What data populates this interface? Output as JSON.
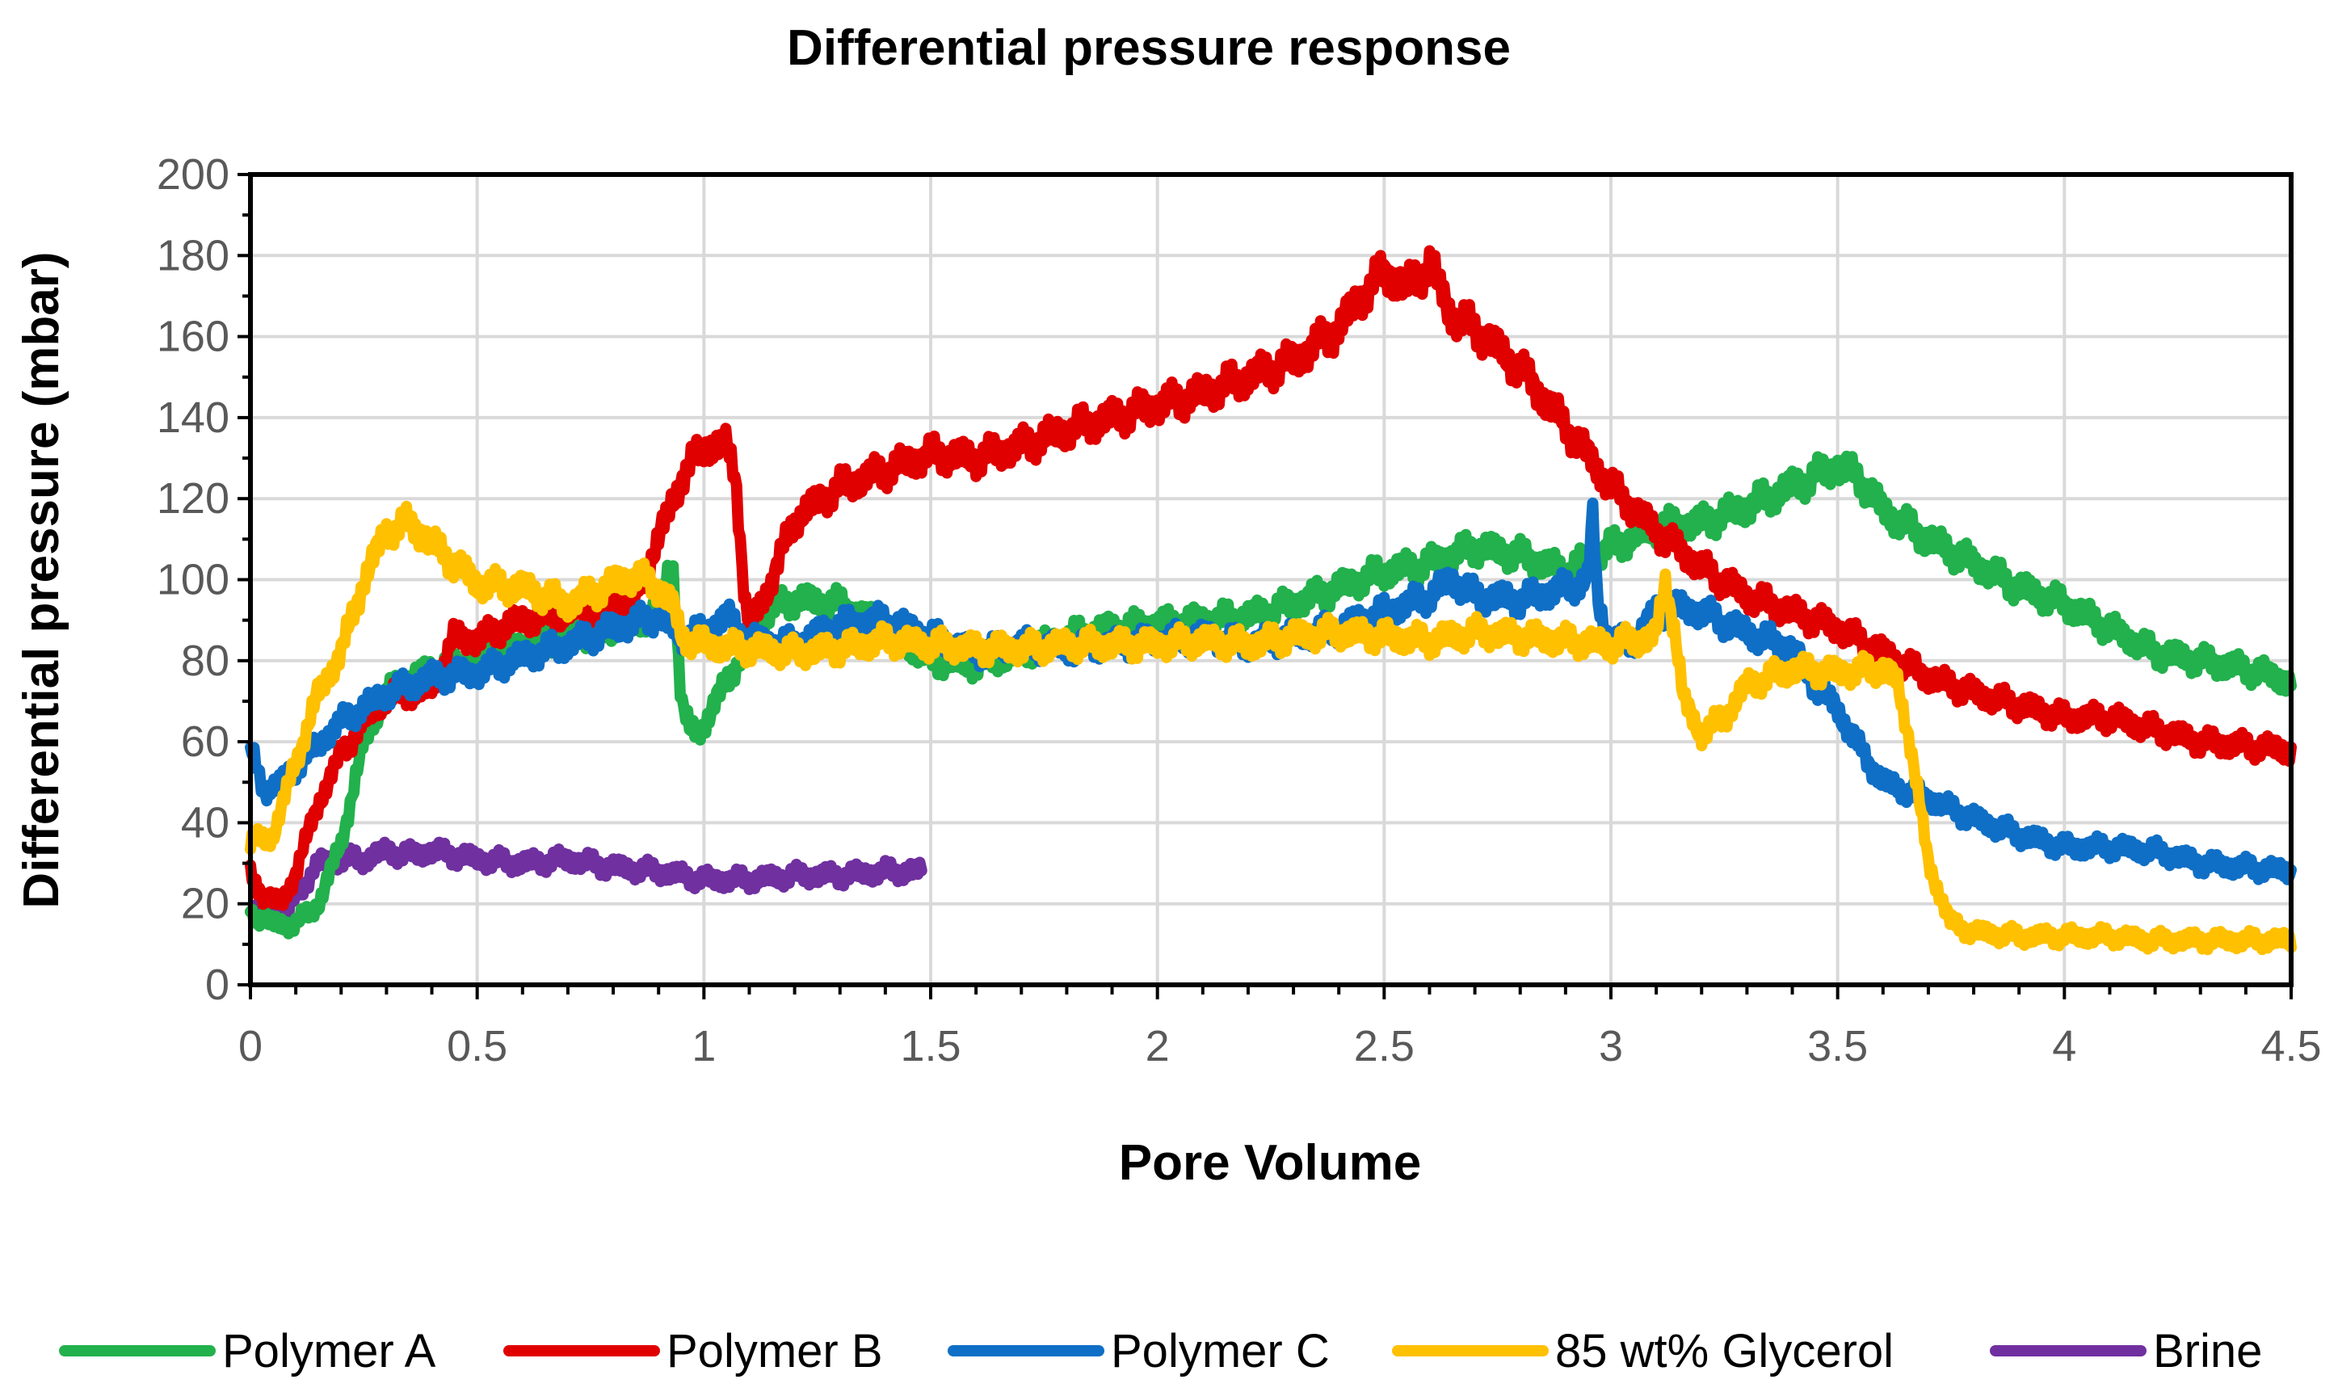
{
  "chart_data": {
    "type": "line",
    "title": "Differential pressure response",
    "xlabel": "Pore Volume",
    "ylabel": "Differential pressure (mbar)",
    "xlim": [
      0,
      4.5
    ],
    "ylim": [
      0,
      200
    ],
    "xticks": [
      "0",
      "0.5",
      "1",
      "1.5",
      "2",
      "2.5",
      "3",
      "3.5",
      "4",
      "4.5"
    ],
    "yticks": [
      "0",
      "20",
      "40",
      "60",
      "80",
      "100",
      "120",
      "140",
      "160",
      "180",
      "200"
    ],
    "grid": true,
    "legend_position": "bottom",
    "series": [
      {
        "name": "Polymer A",
        "color": "#22b14c",
        "points": [
          [
            0,
            18
          ],
          [
            0.05,
            15
          ],
          [
            0.1,
            15
          ],
          [
            0.15,
            20
          ],
          [
            0.2,
            35
          ],
          [
            0.25,
            60
          ],
          [
            0.3,
            72
          ],
          [
            0.4,
            78
          ],
          [
            0.5,
            80
          ],
          [
            0.6,
            84
          ],
          [
            0.7,
            86
          ],
          [
            0.8,
            88
          ],
          [
            0.9,
            92
          ],
          [
            0.93,
            106
          ],
          [
            0.95,
            70
          ],
          [
            0.97,
            62
          ],
          [
            1.0,
            64
          ],
          [
            1.05,
            75
          ],
          [
            1.1,
            85
          ],
          [
            1.15,
            93
          ],
          [
            1.2,
            95
          ],
          [
            1.3,
            94
          ],
          [
            1.4,
            88
          ],
          [
            1.5,
            80
          ],
          [
            1.6,
            79
          ],
          [
            1.7,
            82
          ],
          [
            1.8,
            86
          ],
          [
            1.9,
            88
          ],
          [
            2.0,
            89
          ],
          [
            2.1,
            90
          ],
          [
            2.2,
            91
          ],
          [
            2.3,
            94
          ],
          [
            2.4,
            98
          ],
          [
            2.5,
            102
          ],
          [
            2.6,
            104
          ],
          [
            2.7,
            108
          ],
          [
            2.8,
            106
          ],
          [
            2.9,
            102
          ],
          [
            3.0,
            108
          ],
          [
            3.1,
            113
          ],
          [
            3.2,
            114
          ],
          [
            3.3,
            118
          ],
          [
            3.4,
            123
          ],
          [
            3.5,
            128
          ],
          [
            3.55,
            125
          ],
          [
            3.6,
            117
          ],
          [
            3.7,
            110
          ],
          [
            3.8,
            104
          ],
          [
            3.9,
            98
          ],
          [
            4.0,
            94
          ],
          [
            4.1,
            88
          ],
          [
            4.2,
            82
          ],
          [
            4.3,
            80
          ],
          [
            4.4,
            78
          ],
          [
            4.5,
            75
          ]
        ]
      },
      {
        "name": "Polymer B",
        "color": "#e00000",
        "points": [
          [
            0,
            27
          ],
          [
            0.03,
            22
          ],
          [
            0.07,
            20
          ],
          [
            0.1,
            28
          ],
          [
            0.15,
            45
          ],
          [
            0.2,
            57
          ],
          [
            0.25,
            65
          ],
          [
            0.3,
            71
          ],
          [
            0.4,
            73
          ],
          [
            0.45,
            86
          ],
          [
            0.5,
            85
          ],
          [
            0.55,
            88
          ],
          [
            0.6,
            90
          ],
          [
            0.7,
            92
          ],
          [
            0.8,
            94
          ],
          [
            0.85,
            96
          ],
          [
            0.9,
            110
          ],
          [
            0.95,
            125
          ],
          [
            1.0,
            133
          ],
          [
            1.05,
            133
          ],
          [
            1.07,
            126
          ],
          [
            1.09,
            95
          ],
          [
            1.1,
            88
          ],
          [
            1.15,
            100
          ],
          [
            1.2,
            115
          ],
          [
            1.3,
            123
          ],
          [
            1.4,
            127
          ],
          [
            1.5,
            131
          ],
          [
            1.6,
            130
          ],
          [
            1.7,
            133
          ],
          [
            1.8,
            137
          ],
          [
            1.9,
            140
          ],
          [
            2.0,
            143
          ],
          [
            2.1,
            146
          ],
          [
            2.2,
            150
          ],
          [
            2.3,
            154
          ],
          [
            2.4,
            162
          ],
          [
            2.45,
            170
          ],
          [
            2.5,
            176
          ],
          [
            2.55,
            172
          ],
          [
            2.6,
            178
          ],
          [
            2.65,
            165
          ],
          [
            2.7,
            162
          ],
          [
            2.8,
            152
          ],
          [
            2.9,
            138
          ],
          [
            3.0,
            123
          ],
          [
            3.1,
            112
          ],
          [
            3.2,
            103
          ],
          [
            3.3,
            96
          ],
          [
            3.4,
            92
          ],
          [
            3.5,
            88
          ],
          [
            3.6,
            82
          ],
          [
            3.7,
            76
          ],
          [
            3.8,
            72
          ],
          [
            3.9,
            69
          ],
          [
            4.0,
            66
          ],
          [
            4.1,
            66
          ],
          [
            4.2,
            63
          ],
          [
            4.3,
            60
          ],
          [
            4.4,
            59
          ],
          [
            4.5,
            58
          ]
        ]
      },
      {
        "name": "Polymer C",
        "color": "#0f6fc6",
        "points": [
          [
            0,
            58
          ],
          [
            0.03,
            48
          ],
          [
            0.07,
            50
          ],
          [
            0.12,
            56
          ],
          [
            0.2,
            65
          ],
          [
            0.3,
            72
          ],
          [
            0.4,
            76
          ],
          [
            0.5,
            77
          ],
          [
            0.6,
            81
          ],
          [
            0.7,
            84
          ],
          [
            0.8,
            88
          ],
          [
            0.9,
            91
          ],
          [
            0.95,
            86
          ],
          [
            1.0,
            87
          ],
          [
            1.05,
            91
          ],
          [
            1.1,
            85
          ],
          [
            1.2,
            84
          ],
          [
            1.3,
            89
          ],
          [
            1.4,
            90
          ],
          [
            1.5,
            86
          ],
          [
            1.6,
            82
          ],
          [
            1.7,
            84
          ],
          [
            1.8,
            83
          ],
          [
            1.9,
            84
          ],
          [
            2.0,
            85
          ],
          [
            2.1,
            86
          ],
          [
            2.2,
            84
          ],
          [
            2.3,
            86
          ],
          [
            2.4,
            88
          ],
          [
            2.5,
            92
          ],
          [
            2.6,
            96
          ],
          [
            2.65,
            100
          ],
          [
            2.7,
            96
          ],
          [
            2.8,
            95
          ],
          [
            2.9,
            98
          ],
          [
            2.95,
            100
          ],
          [
            2.96,
            116
          ],
          [
            2.97,
            95
          ],
          [
            3.0,
            84
          ],
          [
            3.05,
            85
          ],
          [
            3.1,
            92
          ],
          [
            3.15,
            93
          ],
          [
            3.2,
            92
          ],
          [
            3.3,
            87
          ],
          [
            3.4,
            83
          ],
          [
            3.45,
            74
          ],
          [
            3.5,
            68
          ],
          [
            3.55,
            58
          ],
          [
            3.6,
            50
          ],
          [
            3.7,
            46
          ],
          [
            3.8,
            41
          ],
          [
            3.9,
            37
          ],
          [
            4.0,
            34
          ],
          [
            4.1,
            34
          ],
          [
            4.2,
            33
          ],
          [
            4.3,
            30
          ],
          [
            4.4,
            29
          ],
          [
            4.5,
            28
          ]
        ]
      },
      {
        "name": "85 wt% Glycerol",
        "color": "#ffc000",
        "points": [
          [
            0,
            35
          ],
          [
            0.05,
            37
          ],
          [
            0.1,
            55
          ],
          [
            0.15,
            72
          ],
          [
            0.2,
            82
          ],
          [
            0.25,
            100
          ],
          [
            0.3,
            112
          ],
          [
            0.35,
            114
          ],
          [
            0.4,
            109
          ],
          [
            0.45,
            104
          ],
          [
            0.5,
            99
          ],
          [
            0.6,
            98
          ],
          [
            0.7,
            94
          ],
          [
            0.8,
            99
          ],
          [
            0.85,
            101
          ],
          [
            0.9,
            98
          ],
          [
            0.93,
            94
          ],
          [
            0.95,
            86
          ],
          [
            1.0,
            84
          ],
          [
            1.1,
            83
          ],
          [
            1.2,
            82
          ],
          [
            1.3,
            83
          ],
          [
            1.4,
            85
          ],
          [
            1.5,
            84
          ],
          [
            1.6,
            83
          ],
          [
            1.7,
            83
          ],
          [
            1.8,
            84
          ],
          [
            1.9,
            84
          ],
          [
            2.0,
            84
          ],
          [
            2.1,
            85
          ],
          [
            2.2,
            84
          ],
          [
            2.3,
            86
          ],
          [
            2.4,
            87
          ],
          [
            2.5,
            86
          ],
          [
            2.6,
            85
          ],
          [
            2.7,
            87
          ],
          [
            2.8,
            86
          ],
          [
            2.9,
            85
          ],
          [
            3.0,
            84
          ],
          [
            3.1,
            86
          ],
          [
            3.12,
            100
          ],
          [
            3.14,
            88
          ],
          [
            3.16,
            70
          ],
          [
            3.2,
            62
          ],
          [
            3.25,
            66
          ],
          [
            3.3,
            74
          ],
          [
            3.4,
            78
          ],
          [
            3.5,
            77
          ],
          [
            3.6,
            78
          ],
          [
            3.63,
            75
          ],
          [
            3.66,
            60
          ],
          [
            3.7,
            30
          ],
          [
            3.75,
            15
          ],
          [
            3.8,
            13
          ],
          [
            3.9,
            12
          ],
          [
            4.0,
            12
          ],
          [
            4.1,
            12
          ],
          [
            4.2,
            11
          ],
          [
            4.3,
            11
          ],
          [
            4.4,
            11
          ],
          [
            4.5,
            11
          ]
        ]
      },
      {
        "name": "Brine",
        "color": "#7030a0",
        "points": [
          [
            0,
            18
          ],
          [
            0.05,
            18
          ],
          [
            0.08,
            17
          ],
          [
            0.1,
            22
          ],
          [
            0.15,
            30
          ],
          [
            0.2,
            31
          ],
          [
            0.25,
            31
          ],
          [
            0.3,
            33
          ],
          [
            0.35,
            32
          ],
          [
            0.4,
            33
          ],
          [
            0.45,
            32
          ],
          [
            0.5,
            31
          ],
          [
            0.6,
            30
          ],
          [
            0.7,
            31
          ],
          [
            0.8,
            29
          ],
          [
            0.9,
            28
          ],
          [
            1.0,
            26
          ],
          [
            1.1,
            26
          ],
          [
            1.2,
            27
          ],
          [
            1.3,
            27
          ],
          [
            1.4,
            28
          ],
          [
            1.48,
            28
          ]
        ]
      }
    ]
  }
}
